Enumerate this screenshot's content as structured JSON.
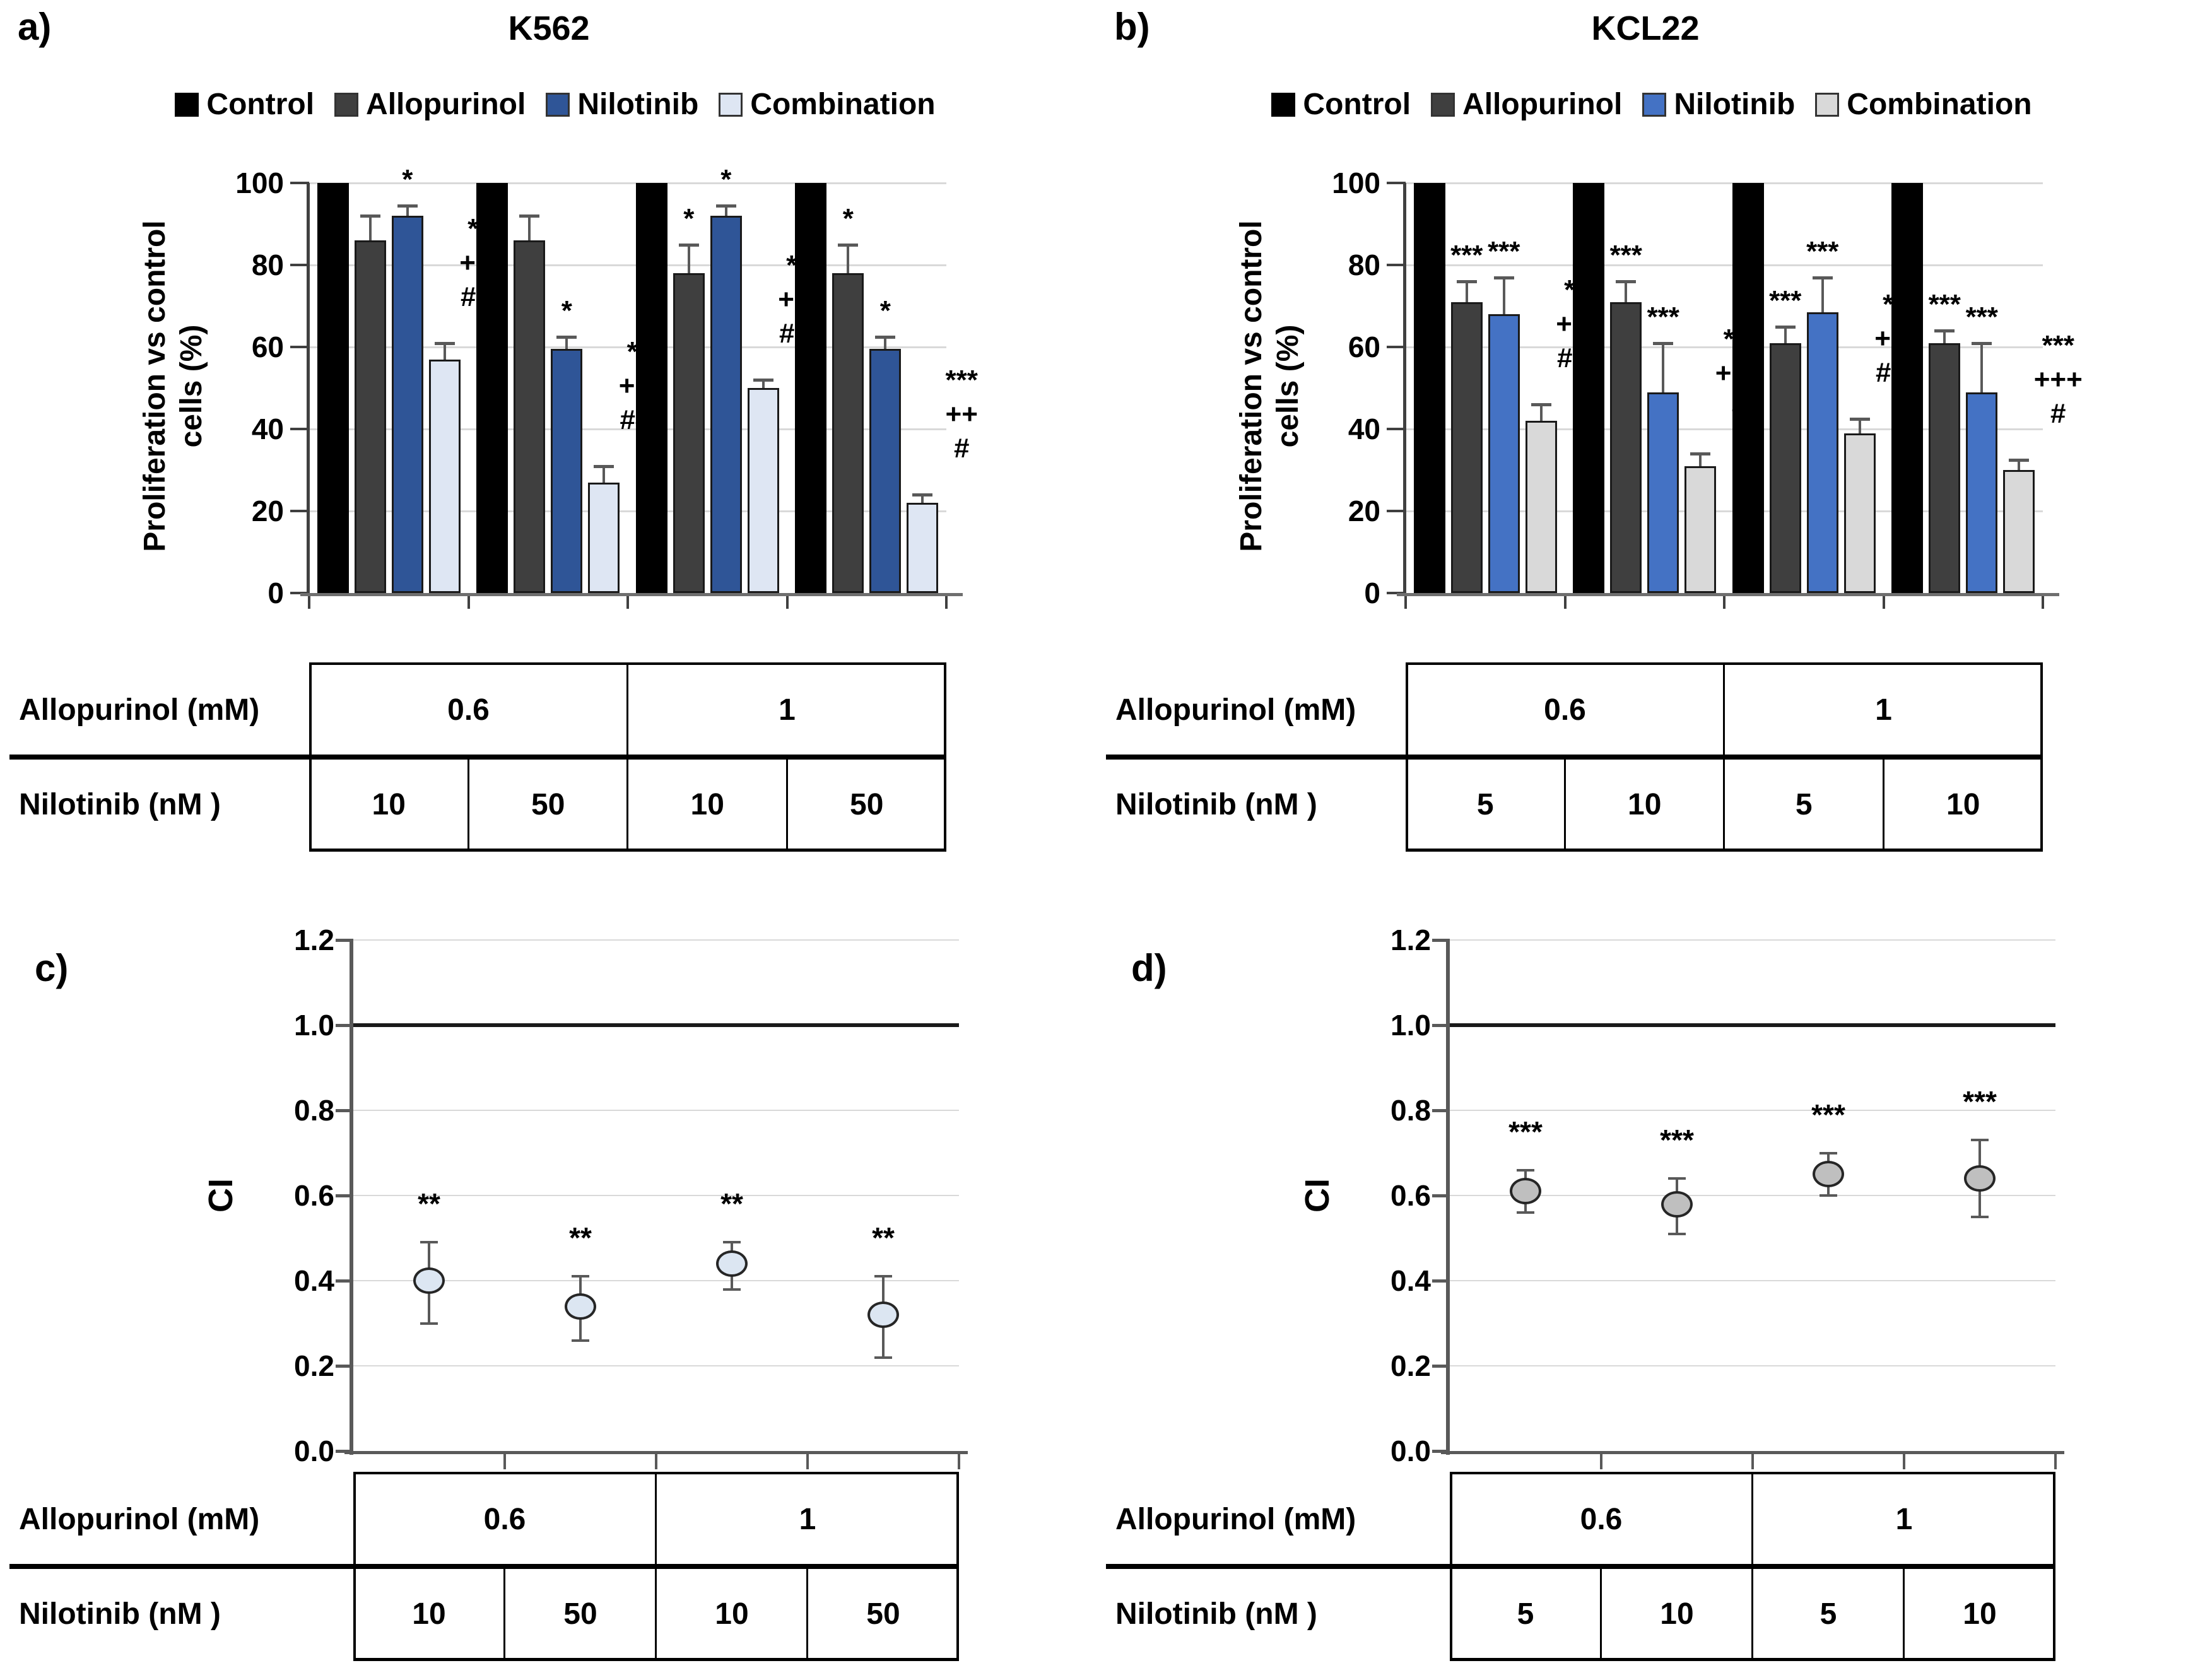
{
  "chart_data": [
    {
      "id": "a",
      "panel_label": "a)",
      "type": "bar",
      "title": "K562",
      "ylabel": "Proliferation vs control cells (%)",
      "ylabel_lines": [
        "Proliferation vs control",
        "cells (%)"
      ],
      "ylim": [
        0,
        100
      ],
      "yticks": [
        0,
        20,
        40,
        60,
        80,
        100
      ],
      "grid": true,
      "legend_position": "top",
      "legend": [
        {
          "label": "Control",
          "color": "#000000"
        },
        {
          "label": "Allopurinol",
          "color": "#3F3F3F"
        },
        {
          "label": "Nilotinib",
          "color": "#2F5597"
        },
        {
          "label": "Combination",
          "color": "#DEE6F3"
        }
      ],
      "series_colors": {
        "Control": "#000000",
        "Allopurinol": "#3F3F3F",
        "Nilotinib": "#2F5597",
        "Combination": "#DEE6F3"
      },
      "categories": [
        "Allopurinol 0.6 mM + Nilotinib 10 nM",
        "Allopurinol 0.6 mM + Nilotinib 50 nM",
        "Allopurinol 1 mM + Nilotinib 10 nM",
        "Allopurinol 1 mM + Nilotinib 50 nM"
      ],
      "groups": [
        {
          "bars": [
            {
              "series": "Control",
              "value": 100,
              "err": 0,
              "ann": []
            },
            {
              "series": "Allopurinol",
              "value": 86,
              "err": 6,
              "ann": []
            },
            {
              "series": "Nilotinib",
              "value": 92,
              "err": 2.5,
              "ann": [
                "*"
              ]
            },
            {
              "series": "Combination",
              "value": 57,
              "err": 4,
              "ann": [
                "***",
                "+++",
                "###"
              ]
            }
          ]
        },
        {
          "bars": [
            {
              "series": "Control",
              "value": 100,
              "err": 0,
              "ann": []
            },
            {
              "series": "Allopurinol",
              "value": 86,
              "err": 6,
              "ann": []
            },
            {
              "series": "Nilotinib",
              "value": 59.5,
              "err": 3,
              "ann": [
                "*"
              ]
            },
            {
              "series": "Combination",
              "value": 27,
              "err": 4,
              "ann": [
                "***",
                "+++",
                "###"
              ]
            }
          ]
        },
        {
          "bars": [
            {
              "series": "Control",
              "value": 100,
              "err": 0,
              "ann": []
            },
            {
              "series": "Allopurinol",
              "value": 78,
              "err": 7,
              "ann": [
                "*"
              ]
            },
            {
              "series": "Nilotinib",
              "value": 92,
              "err": 2.5,
              "ann": [
                "*"
              ]
            },
            {
              "series": "Combination",
              "value": 50,
              "err": 2,
              "ann": [
                "***",
                "+++",
                "###"
              ]
            }
          ]
        },
        {
          "bars": [
            {
              "series": "Control",
              "value": 100,
              "err": 0,
              "ann": []
            },
            {
              "series": "Allopurinol",
              "value": 78,
              "err": 7,
              "ann": [
                "*"
              ]
            },
            {
              "series": "Nilotinib",
              "value": 59.5,
              "err": 3,
              "ann": [
                "*"
              ]
            },
            {
              "series": "Combination",
              "value": 22,
              "err": 2,
              "ann": [
                "***",
                "++",
                "#"
              ]
            }
          ]
        }
      ],
      "table": {
        "rows": [
          {
            "label": "Allopurinol (mM)",
            "cells": [
              {
                "text": "0.6",
                "span": 2
              },
              {
                "text": "1",
                "span": 2
              }
            ]
          },
          {
            "label": "Nilotinib (nM )",
            "cells": [
              {
                "text": "10",
                "span": 1
              },
              {
                "text": "50",
                "span": 1
              },
              {
                "text": "10",
                "span": 1
              },
              {
                "text": "50",
                "span": 1
              }
            ]
          }
        ]
      }
    },
    {
      "id": "b",
      "panel_label": "b)",
      "type": "bar",
      "title": "KCL22",
      "ylabel": "Proliferation vs control cells (%)",
      "ylabel_lines": [
        "Proliferation vs control",
        "cells (%)"
      ],
      "ylim": [
        0,
        100
      ],
      "yticks": [
        0,
        20,
        40,
        60,
        80,
        100
      ],
      "grid": true,
      "legend_position": "top",
      "legend": [
        {
          "label": "Control",
          "color": "#000000"
        },
        {
          "label": "Allopurinol",
          "color": "#3F3F3F"
        },
        {
          "label": "Nilotinib",
          "color": "#4472C4"
        },
        {
          "label": "Combination",
          "color": "#D9D9D9"
        }
      ],
      "series_colors": {
        "Control": "#000000",
        "Allopurinol": "#3F3F3F",
        "Nilotinib": "#4472C4",
        "Combination": "#D9D9D9"
      },
      "categories": [
        "Allopurinol 0.6 mM + Nilotinib 5 nM",
        "Allopurinol 0.6 mM + Nilotinib 10 nM",
        "Allopurinol 1 mM + Nilotinib 5 nM",
        "Allopurinol 1 mM + Nilotinib 10 nM"
      ],
      "groups": [
        {
          "bars": [
            {
              "series": "Control",
              "value": 100,
              "err": 0,
              "ann": []
            },
            {
              "series": "Allopurinol",
              "value": 71,
              "err": 5,
              "ann": [
                "***"
              ]
            },
            {
              "series": "Nilotinib",
              "value": 68,
              "err": 9,
              "ann": [
                "***"
              ]
            },
            {
              "series": "Combination",
              "value": 42,
              "err": 4,
              "ann": [
                "***",
                "+++",
                "###"
              ]
            }
          ]
        },
        {
          "bars": [
            {
              "series": "Control",
              "value": 100,
              "err": 0,
              "ann": []
            },
            {
              "series": "Allopurinol",
              "value": 71,
              "err": 5,
              "ann": [
                "***"
              ]
            },
            {
              "series": "Nilotinib",
              "value": 49,
              "err": 12,
              "ann": [
                "***"
              ]
            },
            {
              "series": "Combination",
              "value": 31,
              "err": 3,
              "ann": [
                "***",
                "+++",
                "#"
              ]
            }
          ]
        },
        {
          "bars": [
            {
              "series": "Control",
              "value": 100,
              "err": 0,
              "ann": []
            },
            {
              "series": "Allopurinol",
              "value": 61,
              "err": 4,
              "ann": [
                "***"
              ]
            },
            {
              "series": "Nilotinib",
              "value": 68.5,
              "err": 8.5,
              "ann": [
                "***"
              ]
            },
            {
              "series": "Combination",
              "value": 39,
              "err": 3.5,
              "ann": [
                "***",
                "+++",
                "###"
              ]
            }
          ]
        },
        {
          "bars": [
            {
              "series": "Control",
              "value": 100,
              "err": 0,
              "ann": []
            },
            {
              "series": "Allopurinol",
              "value": 61,
              "err": 3,
              "ann": [
                "***"
              ]
            },
            {
              "series": "Nilotinib",
              "value": 49,
              "err": 12,
              "ann": [
                "***"
              ]
            },
            {
              "series": "Combination",
              "value": 30,
              "err": 2.5,
              "ann": [
                "***",
                "+++",
                "#"
              ]
            }
          ]
        }
      ],
      "table": {
        "rows": [
          {
            "label": "Allopurinol (mM)",
            "cells": [
              {
                "text": "0.6",
                "span": 2
              },
              {
                "text": "1",
                "span": 2
              }
            ]
          },
          {
            "label": "Nilotinib (nM )",
            "cells": [
              {
                "text": "5",
                "span": 1
              },
              {
                "text": "10",
                "span": 1
              },
              {
                "text": "5",
                "span": 1
              },
              {
                "text": "10",
                "span": 1
              }
            ]
          }
        ]
      }
    },
    {
      "id": "c",
      "panel_label": "c)",
      "type": "scatter",
      "title": "",
      "ylabel": "CI",
      "ylim": [
        0,
        1.2
      ],
      "ytick_step": 0.2,
      "yticks": [
        "0.0",
        "0.2",
        "0.4",
        "0.6",
        "0.8",
        "1.0",
        "1.2"
      ],
      "refline": 1.0,
      "grid": true,
      "marker_color": "#DCE6F2",
      "marker_border": "#262626",
      "points": [
        {
          "value": 0.4,
          "lo": 0.3,
          "hi": 0.49,
          "ann": "**"
        },
        {
          "value": 0.34,
          "lo": 0.26,
          "hi": 0.41,
          "ann": "**"
        },
        {
          "value": 0.44,
          "lo": 0.38,
          "hi": 0.49,
          "ann": "**"
        },
        {
          "value": 0.32,
          "lo": 0.22,
          "hi": 0.41,
          "ann": "**"
        }
      ],
      "table": {
        "rows": [
          {
            "label": "Allopurinol (mM)",
            "cells": [
              {
                "text": "0.6",
                "span": 2
              },
              {
                "text": "1",
                "span": 2
              }
            ]
          },
          {
            "label": "Nilotinib (nM )",
            "cells": [
              {
                "text": "10",
                "span": 1
              },
              {
                "text": "50",
                "span": 1
              },
              {
                "text": "10",
                "span": 1
              },
              {
                "text": "50",
                "span": 1
              }
            ]
          }
        ]
      }
    },
    {
      "id": "d",
      "panel_label": "d)",
      "type": "scatter",
      "title": "",
      "ylabel": "CI",
      "ylim": [
        0,
        1.2
      ],
      "ytick_step": 0.2,
      "yticks": [
        "0.0",
        "0.2",
        "0.4",
        "0.6",
        "0.8",
        "1.0",
        "1.2"
      ],
      "refline": 1.0,
      "grid": true,
      "marker_color": "#BFBFBF",
      "marker_border": "#262626",
      "points": [
        {
          "value": 0.61,
          "lo": 0.56,
          "hi": 0.66,
          "ann": "***"
        },
        {
          "value": 0.58,
          "lo": 0.51,
          "hi": 0.64,
          "ann": "***"
        },
        {
          "value": 0.65,
          "lo": 0.6,
          "hi": 0.7,
          "ann": "***"
        },
        {
          "value": 0.64,
          "lo": 0.55,
          "hi": 0.73,
          "ann": "***"
        }
      ],
      "table": {
        "rows": [
          {
            "label": "Allopurinol (mM)",
            "cells": [
              {
                "text": "0.6",
                "span": 2
              },
              {
                "text": "1",
                "span": 2
              }
            ]
          },
          {
            "label": "Nilotinib (nM )",
            "cells": [
              {
                "text": "5",
                "span": 1
              },
              {
                "text": "10",
                "span": 1
              },
              {
                "text": "5",
                "span": 1
              },
              {
                "text": "10",
                "span": 1
              }
            ]
          }
        ]
      }
    }
  ]
}
